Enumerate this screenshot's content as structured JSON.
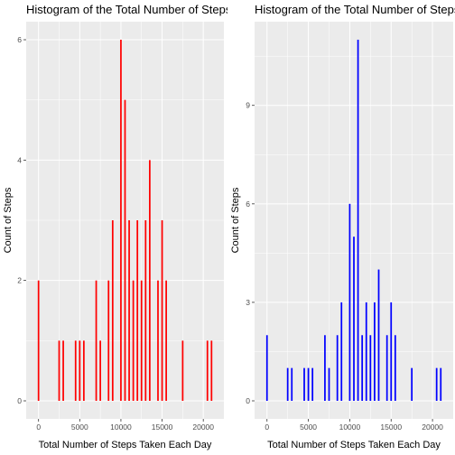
{
  "chart_data": [
    {
      "type": "bar",
      "title": "Histogram of the Total Number of Steps Taken Each Day",
      "xlabel": "Total Number of Steps Taken Each Day",
      "ylabel": "Count of Steps",
      "bar_color": "#FF0000",
      "panel_bg": "#EBEBEB",
      "grid": true,
      "xlim": [
        -1500,
        22500
      ],
      "ylim": [
        -0.3,
        6.3
      ],
      "bin_width": 500,
      "xticks": [
        0,
        5000,
        10000,
        15000,
        20000
      ],
      "xtick_labels": [
        "0",
        "5000",
        "10000",
        "15000",
        "20000"
      ],
      "yticks": [
        0,
        2,
        4,
        6
      ],
      "ytick_labels": [
        "0",
        "2",
        "4",
        "6"
      ],
      "bars": [
        {
          "x": 0,
          "count": 2
        },
        {
          "x": 2500,
          "count": 1
        },
        {
          "x": 3000,
          "count": 1
        },
        {
          "x": 4500,
          "count": 1
        },
        {
          "x": 5000,
          "count": 1
        },
        {
          "x": 5500,
          "count": 1
        },
        {
          "x": 7000,
          "count": 2
        },
        {
          "x": 7500,
          "count": 1
        },
        {
          "x": 8500,
          "count": 2
        },
        {
          "x": 9000,
          "count": 3
        },
        {
          "x": 10000,
          "count": 6
        },
        {
          "x": 10500,
          "count": 5
        },
        {
          "x": 11000,
          "count": 3
        },
        {
          "x": 11500,
          "count": 2
        },
        {
          "x": 12000,
          "count": 3
        },
        {
          "x": 12500,
          "count": 2
        },
        {
          "x": 13000,
          "count": 3
        },
        {
          "x": 13500,
          "count": 4
        },
        {
          "x": 14500,
          "count": 2
        },
        {
          "x": 15000,
          "count": 3
        },
        {
          "x": 15500,
          "count": 2
        },
        {
          "x": 17500,
          "count": 1
        },
        {
          "x": 20500,
          "count": 1
        },
        {
          "x": 21000,
          "count": 1
        }
      ]
    },
    {
      "type": "bar",
      "title": "Histogram of the Total Number of Steps Taken Each Day",
      "xlabel": "Total Number of Steps Taken Each Day",
      "ylabel": "Count of Steps",
      "bar_color": "#0000FF",
      "panel_bg": "#EBEBEB",
      "grid": true,
      "xlim": [
        -1500,
        22500
      ],
      "ylim": [
        -0.55,
        11.55
      ],
      "bin_width": 500,
      "xticks": [
        0,
        5000,
        10000,
        15000,
        20000
      ],
      "xtick_labels": [
        "0",
        "5000",
        "10000",
        "15000",
        "20000"
      ],
      "yticks": [
        0,
        3,
        6,
        9
      ],
      "ytick_labels": [
        "0",
        "3",
        "6",
        "9"
      ],
      "bars": [
        {
          "x": 0,
          "count": 2
        },
        {
          "x": 2500,
          "count": 1
        },
        {
          "x": 3000,
          "count": 1
        },
        {
          "x": 4500,
          "count": 1
        },
        {
          "x": 5000,
          "count": 1
        },
        {
          "x": 5500,
          "count": 1
        },
        {
          "x": 7000,
          "count": 2
        },
        {
          "x": 7500,
          "count": 1
        },
        {
          "x": 8500,
          "count": 2
        },
        {
          "x": 9000,
          "count": 3
        },
        {
          "x": 10000,
          "count": 6
        },
        {
          "x": 10500,
          "count": 5
        },
        {
          "x": 11000,
          "count": 11
        },
        {
          "x": 11500,
          "count": 2
        },
        {
          "x": 12000,
          "count": 3
        },
        {
          "x": 12500,
          "count": 2
        },
        {
          "x": 13000,
          "count": 3
        },
        {
          "x": 13500,
          "count": 4
        },
        {
          "x": 14500,
          "count": 2
        },
        {
          "x": 15000,
          "count": 3
        },
        {
          "x": 15500,
          "count": 2
        },
        {
          "x": 17500,
          "count": 1
        },
        {
          "x": 20500,
          "count": 1
        },
        {
          "x": 21000,
          "count": 1
        }
      ]
    }
  ]
}
